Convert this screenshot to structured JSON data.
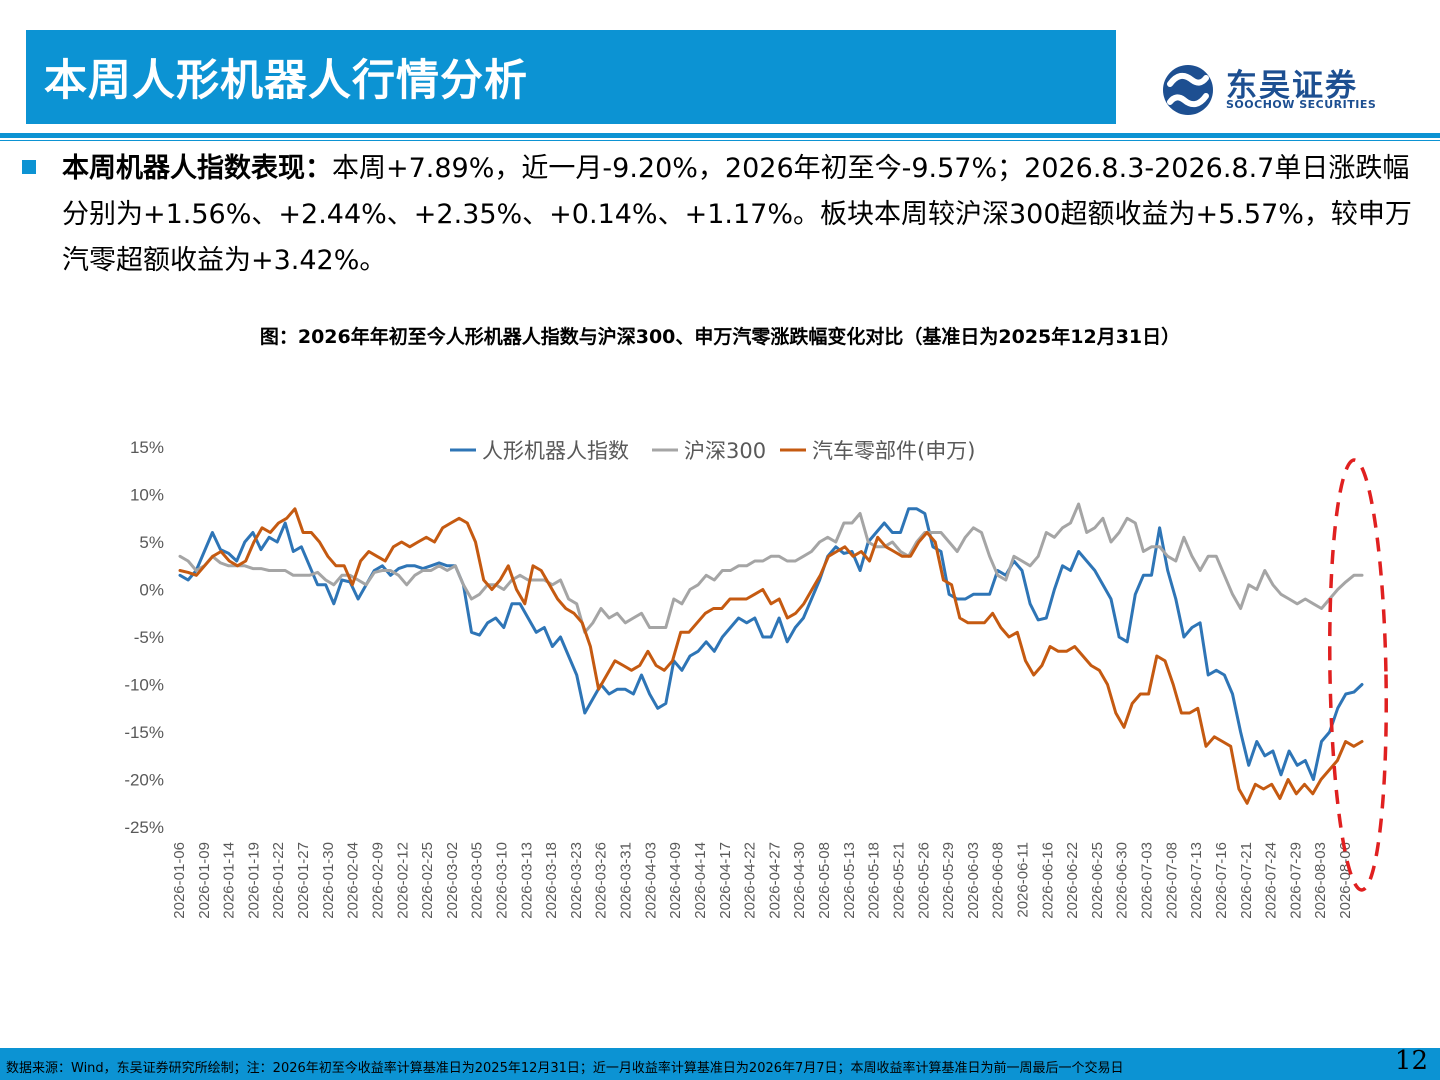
{
  "header": {
    "title": "本周人形机器人行情分析",
    "logo_cn": "东吴证券",
    "logo_en": "SOOCHOW SECURITIES"
  },
  "bullet": {
    "label": "本周机器人指数表现：",
    "text": "本周+7.89%，近一月-9.20%，2026年初至今-9.57%；2026.8.3-2026.8.7单日涨跌幅分别为+1.56%、+2.44%、+2.35%、+0.14%、+1.17%。板块本周较沪深300超额收益为+5.57%，较申万汽零超额收益为+3.42%。"
  },
  "chart_caption": "图：2026年年初至今人形机器人指数与沪深300、申万汽零涨跌幅变化对比（基准日为2025年12月31日）",
  "footer": {
    "note": "数据来源：Wind，东吴证券研究所绘制；注：2026年初至今收益率计算基准日为2025年12月31日；近一月收益率计算基准日为2026年7月7日；本周收益率计算基准日为前一周最后一个交易日",
    "page": "12"
  },
  "colors": {
    "brand_blue": "#0c93d3",
    "series_robot": "#2e75b6",
    "series_hs300": "#a5a5a5",
    "series_auto": "#c55a11",
    "highlight": "#e02020"
  },
  "chart_data": {
    "type": "line",
    "title": "",
    "xlabel": "",
    "ylabel": "",
    "ylim": [
      -25,
      15
    ],
    "yticks": [
      15,
      10,
      5,
      0,
      -5,
      -10,
      -15,
      -20,
      -25
    ],
    "ytick_labels": [
      "15%",
      "10%",
      "5%",
      "0%",
      "-5%",
      "-10%",
      "-15%",
      "-20%",
      "-25%"
    ],
    "grid": false,
    "legend_position": "top-center",
    "x_tick_labels": [
      "2026-01-06",
      "2026-01-09",
      "2026-01-14",
      "2026-01-19",
      "2026-01-22",
      "2026-01-27",
      "2026-01-30",
      "2026-02-04",
      "2026-02-09",
      "2026-02-12",
      "2026-02-25",
      "2026-03-02",
      "2026-03-05",
      "2026-03-10",
      "2026-03-13",
      "2026-03-18",
      "2026-03-23",
      "2026-03-26",
      "2026-03-31",
      "2026-04-03",
      "2026-04-09",
      "2026-04-14",
      "2026-04-17",
      "2026-04-22",
      "2026-04-27",
      "2026-04-30",
      "2026-05-08",
      "2026-05-13",
      "2026-05-18",
      "2026-05-21",
      "2026-05-26",
      "2026-05-29",
      "2026-06-03",
      "2026-06-08",
      "2026-06-11",
      "2026-06-16",
      "2026-06-22",
      "2026-06-25",
      "2026-06-30",
      "2026-07-03",
      "2026-07-08",
      "2026-07-13",
      "2026-07-16",
      "2026-07-21",
      "2026-07-24",
      "2026-07-29",
      "2026-08-03",
      "2026-08-06"
    ],
    "series": [
      {
        "name": "人形机器人指数",
        "values": [
          1.5,
          1.0,
          2.0,
          4.0,
          6.0,
          4.2,
          3.8,
          3.0,
          5.0,
          6.0,
          4.2,
          5.5,
          5.0,
          7.0,
          4.0,
          4.5,
          2.5,
          0.5,
          0.5,
          -1.5,
          1.0,
          0.8,
          -1.0,
          0.5,
          2.0,
          2.5,
          1.5,
          2.2,
          2.5,
          2.5,
          2.2,
          2.5,
          2.8,
          2.5,
          2.5,
          0.5,
          -4.5,
          -4.8,
          -3.5,
          -3.0,
          -4.0,
          -1.5,
          -1.5,
          -3.0,
          -4.5,
          -4.0,
          -6.0,
          -5.0,
          -7.0,
          -9.0,
          -13.0,
          -11.5,
          -10.0,
          -11.0,
          -10.5,
          -10.5,
          -11.0,
          -9.0,
          -11.0,
          -12.5,
          -12.0,
          -7.5,
          -8.5,
          -7.0,
          -6.5,
          -5.5,
          -6.5,
          -5.0,
          -4.0,
          -3.0,
          -3.5,
          -3.0,
          -5.0,
          -5.0,
          -3.0,
          -5.5,
          -4.0,
          -3.0,
          -1.0,
          1.0,
          3.5,
          4.5,
          3.8,
          4.0,
          2.0,
          5.0,
          6.0,
          7.0,
          6.0,
          6.0,
          8.5,
          8.5,
          8.0,
          4.5,
          4.0,
          -0.5,
          -1.0,
          -1.0,
          -0.5,
          -0.5,
          -0.5,
          2.0,
          1.5,
          3.0,
          2.0,
          -1.5,
          -3.2,
          -3.0,
          0.0,
          2.5,
          2.0,
          4.0,
          3.0,
          2.0,
          0.5,
          -1.0,
          -5.0,
          -5.5,
          -0.5,
          1.5,
          1.5,
          6.5,
          2.0,
          -1.0,
          -5.0,
          -4.0,
          -3.5,
          -9.0,
          -8.5,
          -9.0,
          -11.0,
          -15.0,
          -18.5,
          -16.0,
          -17.5,
          -17.0,
          -19.5,
          -17.0,
          -18.5,
          -18.0,
          -20.0,
          -16.0,
          -15.0,
          -12.5,
          -11.0,
          -10.8,
          -10.0
        ]
      },
      {
        "name": "沪深300",
        "values": [
          3.5,
          3.0,
          2.0,
          2.5,
          3.5,
          2.8,
          2.5,
          2.5,
          2.5,
          2.2,
          2.2,
          2.0,
          2.0,
          2.0,
          1.5,
          1.5,
          1.5,
          1.8,
          1.0,
          0.5,
          1.5,
          1.5,
          1.0,
          0.5,
          1.8,
          2.0,
          2.0,
          1.5,
          0.5,
          1.5,
          2.0,
          2.0,
          2.5,
          2.0,
          2.5,
          0.5,
          -1.0,
          -0.5,
          0.5,
          0.5,
          0.0,
          1.0,
          1.5,
          1.0,
          1.0,
          1.0,
          0.5,
          1.0,
          -1.0,
          -1.5,
          -4.5,
          -3.5,
          -2.0,
          -3.0,
          -2.5,
          -3.5,
          -3.0,
          -2.5,
          -4.0,
          -4.0,
          -4.0,
          -1.0,
          -1.5,
          0.0,
          0.5,
          1.5,
          1.0,
          2.0,
          2.0,
          2.5,
          2.5,
          3.0,
          3.0,
          3.5,
          3.5,
          3.0,
          3.0,
          3.5,
          4.0,
          5.0,
          5.5,
          5.0,
          7.0,
          7.0,
          8.0,
          5.0,
          4.5,
          4.5,
          5.0,
          4.0,
          3.5,
          5.0,
          6.0,
          6.0,
          6.0,
          5.0,
          4.0,
          5.5,
          6.5,
          6.0,
          3.5,
          1.5,
          1.0,
          3.5,
          3.0,
          2.5,
          3.5,
          6.0,
          5.5,
          6.5,
          7.0,
          9.0,
          6.0,
          6.5,
          7.5,
          5.0,
          6.0,
          7.5,
          7.0,
          4.0,
          4.5,
          4.5,
          3.5,
          3.0,
          5.5,
          3.5,
          2.0,
          3.5,
          3.5,
          1.5,
          -0.5,
          -2.0,
          0.5,
          0.0,
          2.0,
          0.5,
          -0.5,
          -1.0,
          -1.5,
          -1.0,
          -1.5,
          -2.0,
          -1.0,
          0.0,
          0.8,
          1.5,
          1.5
        ]
      },
      {
        "name": "汽车零部件(申万)",
        "values": [
          2.0,
          1.8,
          1.5,
          2.5,
          3.5,
          4.0,
          3.0,
          2.5,
          3.0,
          5.0,
          6.5,
          6.0,
          7.0,
          7.5,
          8.5,
          6.0,
          6.0,
          5.0,
          3.5,
          2.5,
          2.5,
          0.5,
          3.0,
          4.0,
          3.5,
          3.0,
          4.5,
          5.0,
          4.5,
          5.0,
          5.5,
          5.0,
          6.5,
          7.0,
          7.5,
          7.0,
          5.0,
          1.0,
          0.0,
          1.0,
          2.5,
          0.0,
          -1.5,
          2.5,
          2.0,
          0.5,
          -1.0,
          -2.0,
          -2.5,
          -3.5,
          -6.0,
          -10.5,
          -9.0,
          -7.5,
          -8.0,
          -8.5,
          -8.0,
          -6.5,
          -8.0,
          -8.5,
          -7.5,
          -4.5,
          -4.5,
          -3.5,
          -2.5,
          -2.0,
          -2.0,
          -1.0,
          -1.0,
          -1.0,
          -0.5,
          0.0,
          -1.5,
          -1.0,
          -3.0,
          -2.5,
          -1.5,
          0.0,
          1.5,
          3.5,
          4.0,
          4.5,
          3.5,
          4.0,
          3.0,
          5.5,
          4.5,
          4.0,
          3.5,
          3.5,
          5.0,
          6.0,
          5.0,
          1.0,
          0.5,
          -3.0,
          -3.5,
          -3.5,
          -3.5,
          -2.5,
          -4.0,
          -5.0,
          -4.5,
          -7.5,
          -9.0,
          -8.0,
          -6.0,
          -6.5,
          -6.5,
          -6.0,
          -7.0,
          -8.0,
          -8.5,
          -10.0,
          -13.0,
          -14.5,
          -12.0,
          -11.0,
          -11.0,
          -7.0,
          -7.5,
          -10.0,
          -13.0,
          -13.0,
          -12.5,
          -16.5,
          -15.5,
          -16.0,
          -16.5,
          -21.0,
          -22.5,
          -20.5,
          -21.0,
          -20.5,
          -22.0,
          -20.0,
          -21.5,
          -20.5,
          -21.5,
          -20.0,
          -19.0,
          -18.0,
          -16.0,
          -16.5,
          -16.0
        ]
      }
    ]
  }
}
